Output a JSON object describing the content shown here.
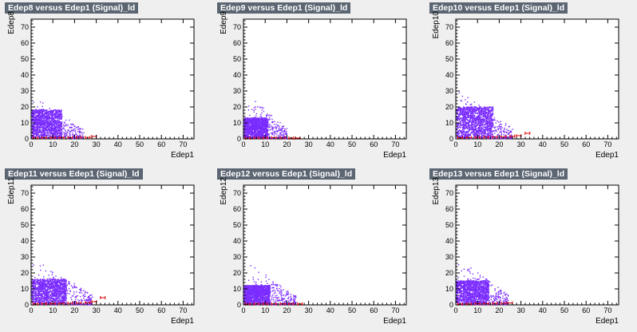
{
  "chart_data": [
    {
      "type": "scatter",
      "title": "Edep8 versus Edep1 (Signal)_ld",
      "xlabel": "Edep1",
      "ylabel": "Edep8",
      "xlim": [
        0,
        75
      ],
      "ylim": [
        0,
        75
      ],
      "x_ticks": [
        "0",
        "10",
        "20",
        "30",
        "40",
        "50",
        "60",
        "70"
      ],
      "y_ticks": [
        "0",
        "10",
        "20",
        "30",
        "40",
        "50",
        "60",
        "70"
      ],
      "grid": false,
      "series": [
        {
          "color": "#7b2cff",
          "cluster": {
            "x_max": 14,
            "y_max": 18,
            "tail_x": 24,
            "tail_y": 28
          }
        },
        {
          "color": "#e00000",
          "profile": [
            [
              2,
              0.6
            ],
            [
              6,
              0.7
            ],
            [
              10,
              0.7
            ],
            [
              14,
              0.8
            ],
            [
              18,
              0.8
            ],
            [
              22,
              1.0
            ],
            [
              26,
              0.9
            ],
            [
              29,
              1.5
            ]
          ]
        }
      ]
    },
    {
      "type": "scatter",
      "title": "Edep9 versus Edep1 (Signal)_ld",
      "xlabel": "Edep1",
      "ylabel": "Edep9",
      "xlim": [
        0,
        75
      ],
      "ylim": [
        0,
        75
      ],
      "x_ticks": [
        "0",
        "10",
        "20",
        "30",
        "40",
        "50",
        "60",
        "70"
      ],
      "y_ticks": [
        "0",
        "10",
        "20",
        "30",
        "40",
        "50",
        "60",
        "70"
      ],
      "grid": false,
      "series": [
        {
          "color": "#7b2cff",
          "cluster": {
            "x_max": 11,
            "y_max": 13,
            "tail_x": 20,
            "tail_y": 30
          }
        },
        {
          "color": "#e00000",
          "profile": [
            [
              2,
              0.5
            ],
            [
              6,
              0.6
            ],
            [
              10,
              0.6
            ],
            [
              14,
              0.7
            ],
            [
              18,
              0.6
            ],
            [
              22,
              0.5
            ],
            [
              25,
              0.5
            ]
          ]
        }
      ]
    },
    {
      "type": "scatter",
      "title": "Edep10 versus Edep1 (Signal)_ld",
      "xlabel": "Edep1",
      "ylabel": "Edep10",
      "xlim": [
        0,
        75
      ],
      "ylim": [
        0,
        75
      ],
      "x_ticks": [
        "0",
        "10",
        "20",
        "30",
        "40",
        "50",
        "60",
        "70"
      ],
      "y_ticks": [
        "0",
        "10",
        "20",
        "30",
        "40",
        "50",
        "60",
        "70"
      ],
      "grid": false,
      "series": [
        {
          "color": "#7b2cff",
          "cluster": {
            "x_max": 17,
            "y_max": 20,
            "tail_x": 26,
            "tail_y": 32
          }
        },
        {
          "color": "#e00000",
          "profile": [
            [
              2,
              0.7
            ],
            [
              6,
              0.8
            ],
            [
              10,
              0.9
            ],
            [
              14,
              1.0
            ],
            [
              18,
              1.1
            ],
            [
              22,
              1.2
            ],
            [
              26,
              1.6
            ],
            [
              29,
              2.0
            ],
            [
              33,
              3.5
            ]
          ]
        }
      ]
    },
    {
      "type": "scatter",
      "title": "Edep11 versus Edep1 (Signal)_ld",
      "xlabel": "Edep1",
      "ylabel": "Edep11",
      "xlim": [
        0,
        75
      ],
      "ylim": [
        0,
        75
      ],
      "x_ticks": [
        "0",
        "10",
        "20",
        "30",
        "40",
        "50",
        "60",
        "70"
      ],
      "y_ticks": [
        "0",
        "10",
        "20",
        "30",
        "40",
        "50",
        "60",
        "70"
      ],
      "grid": false,
      "series": [
        {
          "color": "#7b2cff",
          "cluster": {
            "x_max": 16,
            "y_max": 16,
            "tail_x": 28,
            "tail_y": 30
          }
        },
        {
          "color": "#e00000",
          "profile": [
            [
              2,
              0.6
            ],
            [
              6,
              0.7
            ],
            [
              10,
              0.8
            ],
            [
              14,
              0.9
            ],
            [
              18,
              1.0
            ],
            [
              22,
              1.1
            ],
            [
              26,
              1.3
            ],
            [
              29,
              2.0
            ],
            [
              33,
              4.5
            ]
          ]
        }
      ]
    },
    {
      "type": "scatter",
      "title": "Edep12 versus Edep1 (Signal)_ld",
      "xlabel": "Edep1",
      "ylabel": "Edep12",
      "xlim": [
        0,
        75
      ],
      "ylim": [
        0,
        75
      ],
      "x_ticks": [
        "0",
        "10",
        "20",
        "30",
        "40",
        "50",
        "60",
        "70"
      ],
      "y_ticks": [
        "0",
        "10",
        "20",
        "30",
        "40",
        "50",
        "60",
        "70"
      ],
      "grid": false,
      "series": [
        {
          "color": "#7b2cff",
          "cluster": {
            "x_max": 12,
            "y_max": 12,
            "tail_x": 24,
            "tail_y": 28
          }
        },
        {
          "color": "#e00000",
          "profile": [
            [
              2,
              0.5
            ],
            [
              6,
              0.6
            ],
            [
              10,
              0.6
            ],
            [
              14,
              0.6
            ],
            [
              18,
              0.6
            ],
            [
              22,
              0.6
            ],
            [
              26,
              0.6
            ]
          ]
        }
      ]
    },
    {
      "type": "scatter",
      "title": "Edep13 versus Edep1 (Signal)_ld",
      "xlabel": "Edep1",
      "ylabel": "Edep13",
      "xlim": [
        0,
        75
      ],
      "ylim": [
        0,
        75
      ],
      "x_ticks": [
        "0",
        "10",
        "20",
        "30",
        "40",
        "50",
        "60",
        "70"
      ],
      "y_ticks": [
        "0",
        "10",
        "20",
        "30",
        "40",
        "50",
        "60",
        "70"
      ],
      "grid": false,
      "series": [
        {
          "color": "#7b2cff",
          "cluster": {
            "x_max": 15,
            "y_max": 15,
            "tail_x": 24,
            "tail_y": 30
          }
        },
        {
          "color": "#e00000",
          "profile": [
            [
              2,
              0.5
            ],
            [
              6,
              0.6
            ],
            [
              10,
              0.7
            ],
            [
              14,
              0.8
            ],
            [
              18,
              0.9
            ],
            [
              22,
              1.0
            ],
            [
              25,
              1.2
            ]
          ]
        }
      ]
    }
  ]
}
